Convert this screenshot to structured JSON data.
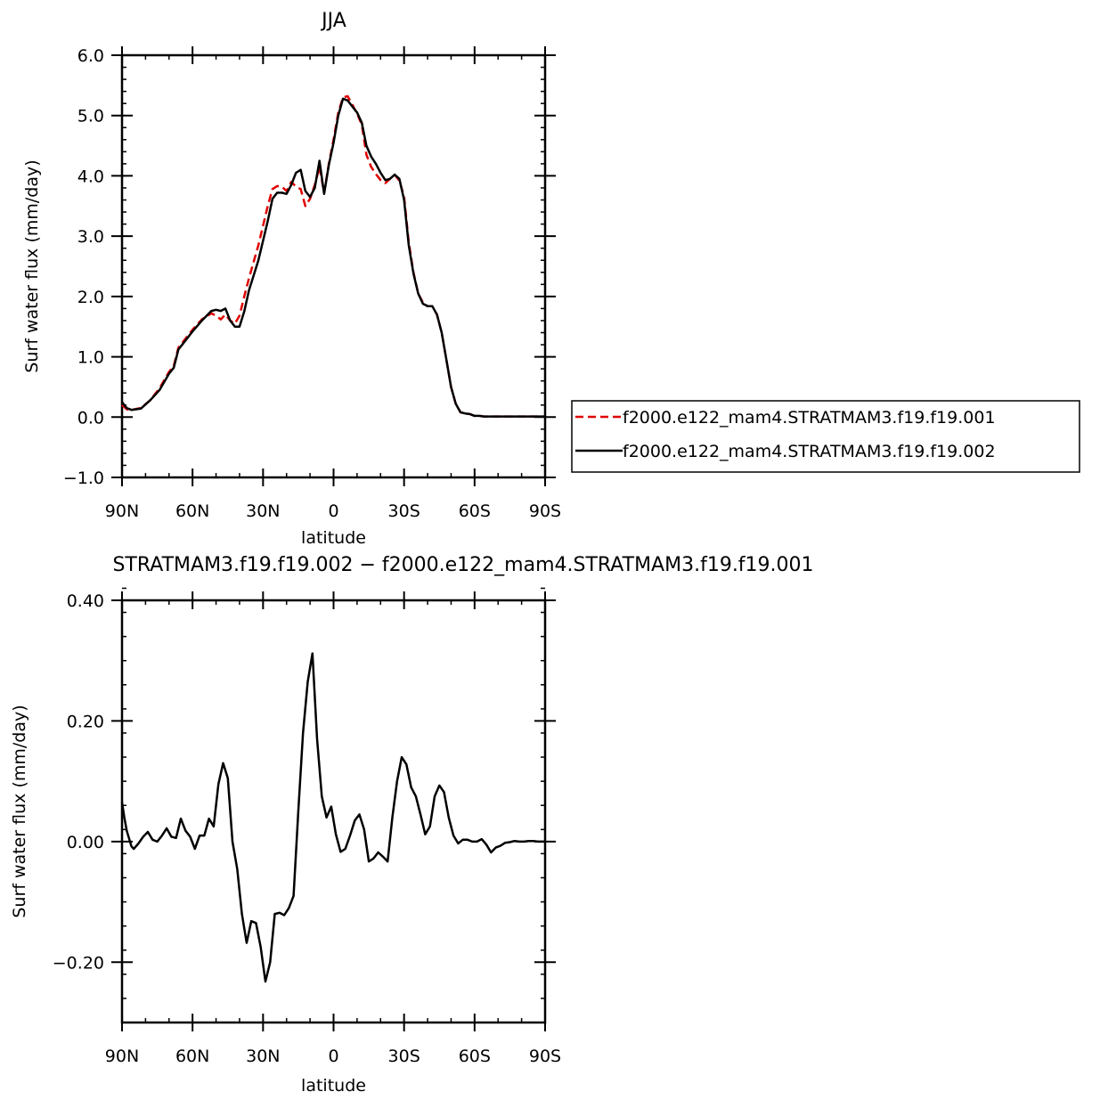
{
  "chart_data": [
    {
      "type": "line",
      "title": "JJA",
      "xlabel": "latitude",
      "ylabel": "Surf water flux (mm/day)",
      "xlim": [
        90,
        -90
      ],
      "ylim": [
        -1.0,
        6.0
      ],
      "x_ticks": [
        {
          "value": 90,
          "label": "90N"
        },
        {
          "value": 60,
          "label": "60N"
        },
        {
          "value": 30,
          "label": "30N"
        },
        {
          "value": 0,
          "label": "0"
        },
        {
          "value": -30,
          "label": "30S"
        },
        {
          "value": -60,
          "label": "60S"
        },
        {
          "value": -90,
          "label": "90S"
        }
      ],
      "y_ticks": [
        {
          "value": -1.0,
          "label": "−1.0"
        },
        {
          "value": 0.0,
          "label": "0.0"
        },
        {
          "value": 1.0,
          "label": "1.0"
        },
        {
          "value": 2.0,
          "label": "2.0"
        },
        {
          "value": 3.0,
          "label": "3.0"
        },
        {
          "value": 4.0,
          "label": "4.0"
        },
        {
          "value": 5.0,
          "label": "5.0"
        },
        {
          "value": 6.0,
          "label": "6.0"
        }
      ],
      "legend_position": "right",
      "series": [
        {
          "name": "f2000.e122_mam4.STRATMAM3.f19.f19.001",
          "color": "#e00000",
          "dash": "dashed",
          "x": [
            90,
            88,
            86,
            82,
            78,
            74,
            70,
            68,
            66,
            64,
            60,
            56,
            52,
            50,
            48,
            46,
            44,
            42,
            40,
            38,
            36,
            32,
            28,
            26,
            24,
            22,
            20,
            18,
            16,
            14,
            12,
            10,
            8,
            6,
            4,
            2,
            0,
            -2,
            -4,
            -6,
            -8,
            -10,
            -12,
            -14,
            -16,
            -18,
            -20,
            -22,
            -24,
            -26,
            -28,
            -30,
            -32,
            -34,
            -36,
            -38,
            -40,
            -42,
            -44,
            -46,
            -48,
            -50,
            -52,
            -54,
            -56,
            -58,
            -60,
            -62,
            -64,
            -66,
            -68,
            -70,
            -72,
            -74,
            -76,
            -78,
            -80,
            -82,
            -84,
            -86,
            -88,
            -90
          ],
          "y": [
            0.2,
            0.13,
            0.12,
            0.15,
            0.28,
            0.48,
            0.75,
            0.85,
            1.15,
            1.25,
            1.45,
            1.62,
            1.72,
            1.68,
            1.62,
            1.7,
            1.6,
            1.55,
            1.68,
            2.0,
            2.3,
            2.85,
            3.5,
            3.78,
            3.83,
            3.82,
            3.75,
            3.9,
            3.82,
            3.78,
            3.5,
            3.62,
            3.85,
            4.15,
            3.72,
            4.2,
            4.6,
            5.05,
            5.3,
            5.32,
            5.18,
            5.03,
            4.85,
            4.35,
            4.15,
            4.03,
            3.93,
            3.88,
            3.95,
            4.02,
            3.92,
            3.65,
            2.9,
            2.4,
            2.05,
            1.9,
            1.84,
            1.84,
            1.7,
            1.4,
            0.95,
            0.5,
            0.22,
            0.08,
            0.06,
            0.05,
            0.02,
            0.02,
            0.01,
            0.01,
            0.01,
            0.01,
            0.01,
            0.01,
            0.01,
            0.01,
            0.01,
            0.01,
            0.01,
            0.01,
            0.01,
            0.01
          ]
        },
        {
          "name": "f2000.e122_mam4.STRATMAM3.f19.f19.002",
          "color": "#000000",
          "dash": "solid",
          "x": [
            90,
            88,
            86,
            82,
            78,
            74,
            70,
            68,
            66,
            64,
            60,
            56,
            52,
            50,
            48,
            46,
            44,
            42,
            40,
            38,
            36,
            32,
            28,
            26,
            24,
            22,
            20,
            18,
            16,
            14,
            12,
            10,
            8,
            6,
            4,
            2,
            0,
            -2,
            -4,
            -6,
            -8,
            -10,
            -12,
            -14,
            -16,
            -18,
            -20,
            -22,
            -24,
            -26,
            -28,
            -30,
            -32,
            -34,
            -36,
            -38,
            -40,
            -42,
            -44,
            -46,
            -48,
            -50,
            -52,
            -54,
            -56,
            -58,
            -60,
            -62,
            -64,
            -66,
            -68,
            -70,
            -72,
            -74,
            -76,
            -78,
            -80,
            -82,
            -84,
            -86,
            -88,
            -90
          ],
          "y": [
            0.25,
            0.15,
            0.12,
            0.14,
            0.28,
            0.45,
            0.72,
            0.82,
            1.12,
            1.22,
            1.42,
            1.6,
            1.76,
            1.78,
            1.76,
            1.8,
            1.6,
            1.5,
            1.5,
            1.75,
            2.1,
            2.6,
            3.25,
            3.62,
            3.72,
            3.72,
            3.7,
            3.85,
            4.05,
            4.1,
            3.75,
            3.65,
            3.8,
            4.25,
            3.7,
            4.18,
            4.55,
            5.0,
            5.28,
            5.25,
            5.15,
            5.05,
            4.88,
            4.5,
            4.32,
            4.2,
            4.05,
            3.93,
            3.95,
            4.02,
            3.95,
            3.6,
            2.85,
            2.38,
            2.05,
            1.88,
            1.84,
            1.84,
            1.7,
            1.4,
            0.95,
            0.5,
            0.22,
            0.08,
            0.06,
            0.05,
            0.02,
            0.02,
            0.01,
            0.01,
            0.01,
            0.01,
            0.01,
            0.01,
            0.01,
            0.01,
            0.01,
            0.01,
            0.01,
            0.01,
            0.01,
            0.01
          ]
        }
      ]
    },
    {
      "type": "line",
      "title": "STRATMAM3.f19.f19.002 − f2000.e122_mam4.STRATMAM3.f19.f19.001",
      "xlabel": "latitude",
      "ylabel": "Surf water flux (mm/day)",
      "xlim": [
        90,
        -90
      ],
      "ylim": [
        -0.3,
        0.4
      ],
      "x_ticks": [
        {
          "value": 90,
          "label": "90N"
        },
        {
          "value": 60,
          "label": "60N"
        },
        {
          "value": 30,
          "label": "30N"
        },
        {
          "value": 0,
          "label": "0"
        },
        {
          "value": -30,
          "label": "30S"
        },
        {
          "value": -60,
          "label": "60S"
        },
        {
          "value": -90,
          "label": "90S"
        }
      ],
      "y_ticks": [
        {
          "value": -0.2,
          "label": "−0.20"
        },
        {
          "value": 0.0,
          "label": "0.00"
        },
        {
          "value": 0.2,
          "label": "0.20"
        },
        {
          "value": 0.4,
          "label": "0.40"
        }
      ],
      "series": [
        {
          "color": "#000000",
          "dash": "solid",
          "x": [
            90,
            89,
            88,
            86,
            85,
            83,
            81,
            79,
            77,
            75,
            73,
            71,
            69,
            67,
            65,
            63,
            61,
            59,
            57,
            55,
            53,
            51,
            49,
            47,
            45,
            43,
            41,
            39,
            37,
            35,
            33,
            31,
            29,
            27,
            25,
            23,
            21,
            19,
            17,
            15,
            13,
            11,
            9,
            7,
            5,
            3,
            1,
            -1,
            -3,
            -5,
            -7,
            -9,
            -11,
            -13,
            -15,
            -17,
            -19,
            -21,
            -23,
            -25,
            -27,
            -29,
            -31,
            -33,
            -35,
            -37,
            -39,
            -41,
            -43,
            -45,
            -47,
            -49,
            -51,
            -53,
            -55,
            -57,
            -59,
            -61,
            -63,
            -65,
            -67,
            -69,
            -71,
            -73,
            -75,
            -77,
            -79,
            -81,
            -83,
            -85,
            -87,
            -89,
            -90
          ],
          "y": [
            0.065,
            0.04,
            0.018,
            -0.008,
            -0.012,
            -0.003,
            0.008,
            0.016,
            0.003,
            0.0,
            0.01,
            0.022,
            0.008,
            0.006,
            0.038,
            0.018,
            0.008,
            -0.012,
            0.01,
            0.01,
            0.038,
            0.025,
            0.095,
            0.13,
            0.105,
            0.0,
            -0.045,
            -0.12,
            -0.168,
            -0.132,
            -0.135,
            -0.175,
            -0.232,
            -0.2,
            -0.12,
            -0.118,
            -0.122,
            -0.11,
            -0.09,
            0.05,
            0.18,
            0.265,
            0.312,
            0.17,
            0.075,
            0.04,
            0.058,
            0.012,
            -0.017,
            -0.012,
            0.01,
            0.035,
            0.045,
            0.02,
            -0.033,
            -0.028,
            -0.018,
            -0.025,
            -0.033,
            0.04,
            0.1,
            0.14,
            0.128,
            0.09,
            0.075,
            0.045,
            0.012,
            0.025,
            0.075,
            0.093,
            0.082,
            0.04,
            0.01,
            -0.003,
            0.003,
            0.003,
            0.0,
            0.0,
            0.004,
            -0.005,
            -0.018,
            -0.01,
            -0.007,
            -0.002,
            -0.001,
            0.001,
            0.0,
            0.0,
            0.001,
            0.001,
            0.0,
            0.0,
            0.0
          ]
        }
      ]
    }
  ]
}
